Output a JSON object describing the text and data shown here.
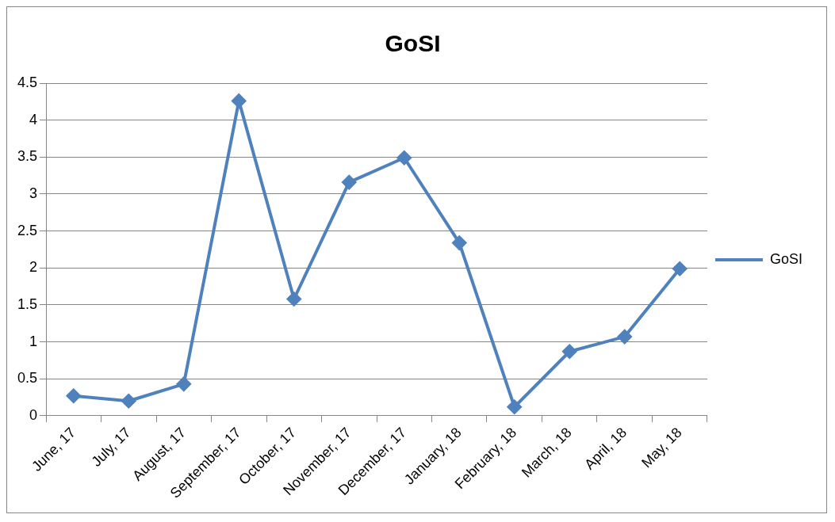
{
  "chart_data": {
    "type": "line",
    "title": "GoSI",
    "categories": [
      "June, 17",
      "July, 17",
      "August, 17",
      "September, 17",
      "October, 17",
      "November, 17",
      "December, 17",
      "January, 18",
      "February, 18",
      "March, 18",
      "April, 18",
      "May, 18"
    ],
    "series": [
      {
        "name": "GoSI",
        "color": "#4f81bd",
        "values": [
          0.27,
          0.2,
          0.43,
          4.26,
          1.58,
          3.16,
          3.49,
          2.34,
          0.12,
          0.87,
          1.07,
          1.99
        ]
      }
    ],
    "ylim": [
      0,
      4.5
    ],
    "yticks": [
      0,
      0.5,
      1,
      1.5,
      2,
      2.5,
      3,
      3.5,
      4,
      4.5
    ],
    "grid": "y",
    "legend": "right",
    "marker": "diamond",
    "line_style": "solid"
  }
}
